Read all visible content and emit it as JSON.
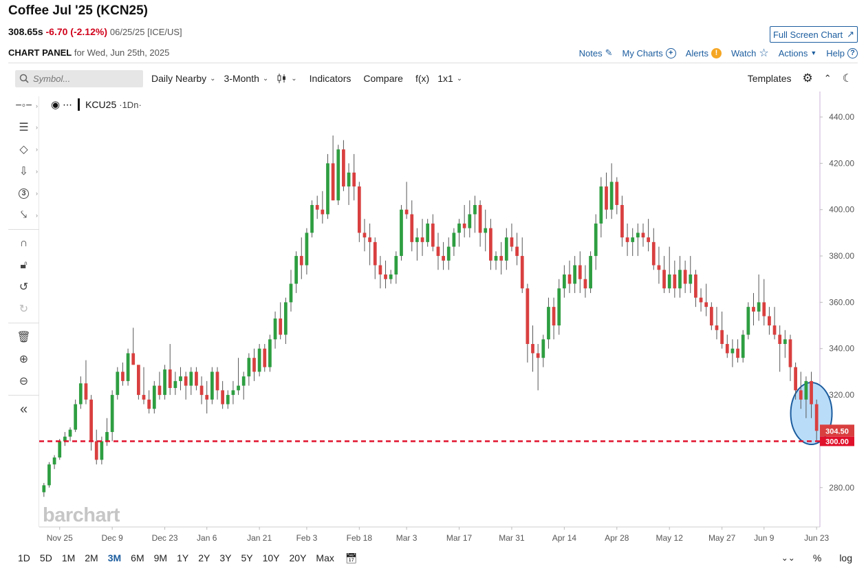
{
  "header": {
    "title": "Coffee Jul '25 (KCN25)",
    "last": "308.65s",
    "change": "-6.70 (-2.12%)",
    "meta": "06/25/25 [ICE/US]",
    "fullscreen_label": "Full Screen Chart",
    "panel_label": "CHART PANEL",
    "panel_date": "for Wed, Jun 25th, 2025",
    "links": {
      "notes": "Notes",
      "my_charts": "My Charts",
      "alerts": "Alerts",
      "watch": "Watch",
      "actions": "Actions",
      "help": "Help"
    }
  },
  "toolbar": {
    "search_placeholder": "Symbol...",
    "interval": "Daily Nearby",
    "period": "3-Month",
    "indicators": "Indicators",
    "compare": "Compare",
    "fx": "f(x)",
    "layout": "1x1",
    "templates": "Templates"
  },
  "legend": {
    "symbol": "KCU25",
    "interval": "1Dn"
  },
  "watermark": "barchart",
  "bottom": {
    "ranges": [
      "1D",
      "5D",
      "1M",
      "2M",
      "3M",
      "6M",
      "9M",
      "1Y",
      "2Y",
      "3Y",
      "5Y",
      "10Y",
      "20Y",
      "Max"
    ],
    "active": "3M",
    "percent": "%",
    "log": "log"
  },
  "chart_data": {
    "type": "candlestick",
    "y_ticks": [
      "440.00",
      "420.00",
      "400.00",
      "380.00",
      "360.00",
      "340.00",
      "320.00",
      "300.00",
      "280.00"
    ],
    "ylim": [
      263,
      451
    ],
    "x_ticks": [
      {
        "label": "Nov 25",
        "index": 3
      },
      {
        "label": "Dec 9",
        "index": 13
      },
      {
        "label": "Dec 23",
        "index": 23
      },
      {
        "label": "Jan 6",
        "index": 31
      },
      {
        "label": "Jan 21",
        "index": 41
      },
      {
        "label": "Feb 3",
        "index": 50
      },
      {
        "label": "Feb 18",
        "index": 60
      },
      {
        "label": "Mar 3",
        "index": 69
      },
      {
        "label": "Mar 17",
        "index": 79
      },
      {
        "label": "Mar 31",
        "index": 89
      },
      {
        "label": "Apr 14",
        "index": 99
      },
      {
        "label": "Apr 28",
        "index": 109
      },
      {
        "label": "May 12",
        "index": 119
      },
      {
        "label": "May 27",
        "index": 129
      },
      {
        "label": "Jun 9",
        "index": 137
      },
      {
        "label": "Jun 23",
        "index": 147
      }
    ],
    "last_price_label": "304.50",
    "support_label": "300.00",
    "support_level": 300,
    "last_price": 304.5,
    "up_color": "#2e9e41",
    "down_color": "#d93f3f",
    "highlight_color": "#b9dcf8",
    "ohlc": [
      [
        278,
        282,
        276,
        281
      ],
      [
        281,
        291,
        280,
        290
      ],
      [
        290,
        294,
        288,
        293
      ],
      [
        293,
        301,
        292,
        300
      ],
      [
        300,
        304,
        298,
        302
      ],
      [
        302,
        306,
        300,
        305
      ],
      [
        305,
        318,
        304,
        316
      ],
      [
        316,
        328,
        314,
        325
      ],
      [
        325,
        335,
        316,
        318
      ],
      [
        318,
        320,
        296,
        300
      ],
      [
        300,
        305,
        290,
        292
      ],
      [
        292,
        302,
        290,
        300
      ],
      [
        300,
        310,
        298,
        304
      ],
      [
        304,
        322,
        300,
        320
      ],
      [
        320,
        332,
        318,
        330
      ],
      [
        330,
        334,
        324,
        326
      ],
      [
        326,
        340,
        324,
        338
      ],
      [
        338,
        349,
        333,
        333
      ],
      [
        333,
        332,
        318,
        320
      ],
      [
        320,
        332,
        316,
        318
      ],
      [
        318,
        322,
        312,
        314
      ],
      [
        314,
        326,
        312,
        324
      ],
      [
        324,
        330,
        318,
        320
      ],
      [
        320,
        333,
        318,
        331
      ],
      [
        331,
        342,
        320,
        323
      ],
      [
        323,
        330,
        320,
        326
      ],
      [
        326,
        332,
        322,
        328
      ],
      [
        328,
        330,
        318,
        324
      ],
      [
        324,
        332,
        320,
        330
      ],
      [
        330,
        332,
        322,
        324
      ],
      [
        324,
        328,
        316,
        320
      ],
      [
        320,
        326,
        312,
        318
      ],
      [
        318,
        332,
        316,
        330
      ],
      [
        330,
        332,
        318,
        322
      ],
      [
        322,
        326,
        314,
        316
      ],
      [
        316,
        322,
        314,
        320
      ],
      [
        320,
        326,
        316,
        322
      ],
      [
        322,
        336,
        320,
        324
      ],
      [
        324,
        330,
        318,
        328
      ],
      [
        328,
        338,
        324,
        336
      ],
      [
        336,
        340,
        326,
        330
      ],
      [
        330,
        342,
        328,
        340
      ],
      [
        340,
        342,
        330,
        332
      ],
      [
        332,
        346,
        330,
        344
      ],
      [
        344,
        356,
        340,
        353
      ],
      [
        353,
        360,
        344,
        346
      ],
      [
        346,
        362,
        342,
        360
      ],
      [
        360,
        374,
        356,
        368
      ],
      [
        368,
        382,
        364,
        380
      ],
      [
        380,
        388,
        370,
        376
      ],
      [
        376,
        392,
        372,
        390
      ],
      [
        390,
        404,
        388,
        402
      ],
      [
        402,
        406,
        396,
        400
      ],
      [
        400,
        408,
        394,
        398
      ],
      [
        398,
        424,
        396,
        420
      ],
      [
        420,
        432,
        404,
        404
      ],
      [
        404,
        428,
        402,
        426
      ],
      [
        426,
        430,
        408,
        410
      ],
      [
        410,
        420,
        402,
        416
      ],
      [
        416,
        424,
        404,
        410
      ],
      [
        410,
        412,
        386,
        390
      ],
      [
        390,
        396,
        382,
        388
      ],
      [
        388,
        394,
        376,
        386
      ],
      [
        386,
        388,
        370,
        376
      ],
      [
        376,
        380,
        366,
        372
      ],
      [
        372,
        378,
        366,
        370
      ],
      [
        370,
        374,
        368,
        372
      ],
      [
        372,
        382,
        368,
        380
      ],
      [
        380,
        402,
        378,
        400
      ],
      [
        400,
        412,
        396,
        398
      ],
      [
        398,
        404,
        382,
        386
      ],
      [
        386,
        392,
        378,
        388
      ],
      [
        388,
        396,
        380,
        386
      ],
      [
        386,
        396,
        384,
        394
      ],
      [
        394,
        398,
        382,
        384
      ],
      [
        384,
        390,
        374,
        380
      ],
      [
        380,
        386,
        374,
        378
      ],
      [
        378,
        388,
        374,
        384
      ],
      [
        384,
        392,
        380,
        390
      ],
      [
        390,
        396,
        384,
        394
      ],
      [
        394,
        402,
        388,
        392
      ],
      [
        392,
        404,
        388,
        398
      ],
      [
        398,
        406,
        390,
        402
      ],
      [
        402,
        404,
        384,
        390
      ],
      [
        390,
        400,
        382,
        392
      ],
      [
        392,
        396,
        374,
        378
      ],
      [
        378,
        382,
        374,
        380
      ],
      [
        380,
        386,
        372,
        378
      ],
      [
        378,
        392,
        374,
        388
      ],
      [
        388,
        394,
        382,
        384
      ],
      [
        384,
        390,
        376,
        380
      ],
      [
        380,
        388,
        364,
        366
      ],
      [
        366,
        368,
        334,
        342
      ],
      [
        342,
        350,
        330,
        338
      ],
      [
        338,
        342,
        322,
        336
      ],
      [
        336,
        346,
        332,
        344
      ],
      [
        344,
        362,
        340,
        358
      ],
      [
        358,
        362,
        344,
        350
      ],
      [
        350,
        370,
        346,
        366
      ],
      [
        366,
        376,
        362,
        372
      ],
      [
        372,
        378,
        364,
        368
      ],
      [
        368,
        380,
        364,
        376
      ],
      [
        376,
        382,
        364,
        370
      ],
      [
        370,
        376,
        362,
        366
      ],
      [
        366,
        382,
        364,
        380
      ],
      [
        380,
        398,
        374,
        394
      ],
      [
        394,
        414,
        388,
        410
      ],
      [
        410,
        416,
        396,
        400
      ],
      [
        400,
        420,
        396,
        412
      ],
      [
        412,
        414,
        398,
        402
      ],
      [
        402,
        406,
        384,
        388
      ],
      [
        388,
        394,
        380,
        386
      ],
      [
        386,
        392,
        380,
        388
      ],
      [
        388,
        394,
        380,
        390
      ],
      [
        390,
        394,
        384,
        388
      ],
      [
        388,
        396,
        382,
        386
      ],
      [
        386,
        392,
        374,
        376
      ],
      [
        376,
        384,
        368,
        374
      ],
      [
        374,
        380,
        364,
        366
      ],
      [
        366,
        384,
        364,
        372
      ],
      [
        372,
        378,
        362,
        366
      ],
      [
        366,
        380,
        362,
        374
      ],
      [
        374,
        378,
        364,
        368
      ],
      [
        368,
        380,
        364,
        372
      ],
      [
        372,
        374,
        358,
        362
      ],
      [
        362,
        366,
        356,
        360
      ],
      [
        360,
        368,
        354,
        358
      ],
      [
        358,
        360,
        348,
        350
      ],
      [
        350,
        358,
        344,
        348
      ],
      [
        348,
        356,
        340,
        342
      ],
      [
        342,
        346,
        336,
        338
      ],
      [
        338,
        344,
        332,
        340
      ],
      [
        340,
        344,
        334,
        336
      ],
      [
        336,
        348,
        334,
        346
      ],
      [
        346,
        360,
        344,
        358
      ],
      [
        358,
        364,
        350,
        356
      ],
      [
        356,
        372,
        352,
        360
      ],
      [
        360,
        370,
        350,
        354
      ],
      [
        354,
        358,
        346,
        350
      ],
      [
        350,
        358,
        344,
        346
      ],
      [
        346,
        350,
        330,
        342
      ],
      [
        342,
        348,
        336,
        344
      ],
      [
        344,
        346,
        326,
        332
      ],
      [
        332,
        334,
        318,
        322
      ],
      [
        322,
        330,
        314,
        318
      ],
      [
        318,
        328,
        310,
        326
      ],
      [
        326,
        330,
        310,
        316
      ],
      [
        316,
        318,
        300,
        304.5
      ]
    ]
  }
}
